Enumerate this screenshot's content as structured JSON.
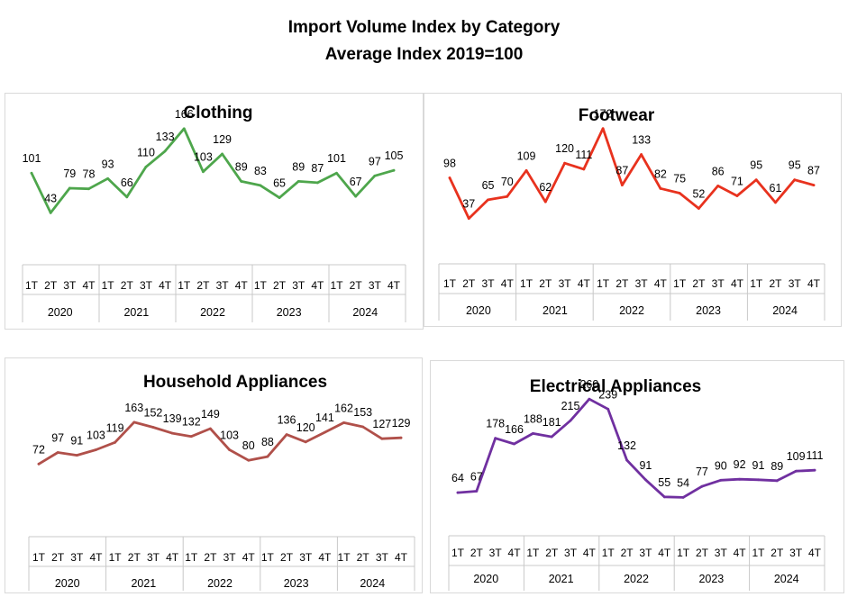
{
  "title": "Import Volume Index by Category",
  "subtitle": "Average Index 2019=100",
  "chart_data": [
    {
      "type": "line",
      "title": "Clothing",
      "color": "#4ea64c",
      "years": [
        "2020",
        "2021",
        "2022",
        "2023",
        "2024"
      ],
      "quarters": [
        "1T",
        "2T",
        "3T",
        "4T"
      ],
      "values": [
        101,
        43,
        79,
        78,
        93,
        66,
        110,
        133,
        166,
        103,
        129,
        89,
        83,
        65,
        89,
        87,
        101,
        67,
        97,
        105
      ]
    },
    {
      "type": "line",
      "title": "Footwear",
      "color": "#e8321e",
      "years": [
        "2020",
        "2021",
        "2022",
        "2023",
        "2024"
      ],
      "quarters": [
        "1T",
        "2T",
        "3T",
        "4T"
      ],
      "values": [
        98,
        37,
        65,
        70,
        109,
        62,
        120,
        111,
        172,
        87,
        133,
        82,
        75,
        52,
        86,
        71,
        95,
        61,
        95,
        87
      ]
    },
    {
      "type": "line",
      "title": "Household Appliances",
      "color": "#b0504a",
      "years": [
        "2020",
        "2021",
        "2022",
        "2023",
        "2024"
      ],
      "quarters": [
        "1T",
        "2T",
        "3T",
        "4T"
      ],
      "values": [
        72,
        97,
        91,
        103,
        119,
        163,
        152,
        139,
        132,
        149,
        103,
        80,
        88,
        136,
        120,
        141,
        162,
        153,
        127,
        129
      ]
    },
    {
      "type": "line",
      "title": "Electrical Appliances",
      "color": "#7030a0",
      "years": [
        "2020",
        "2021",
        "2022",
        "2023",
        "2024"
      ],
      "quarters": [
        "1T",
        "2T",
        "3T",
        "4T"
      ],
      "values": [
        64,
        67,
        178,
        166,
        188,
        181,
        215,
        260,
        239,
        132,
        91,
        55,
        54,
        77,
        90,
        92,
        91,
        89,
        109,
        111
      ]
    }
  ]
}
